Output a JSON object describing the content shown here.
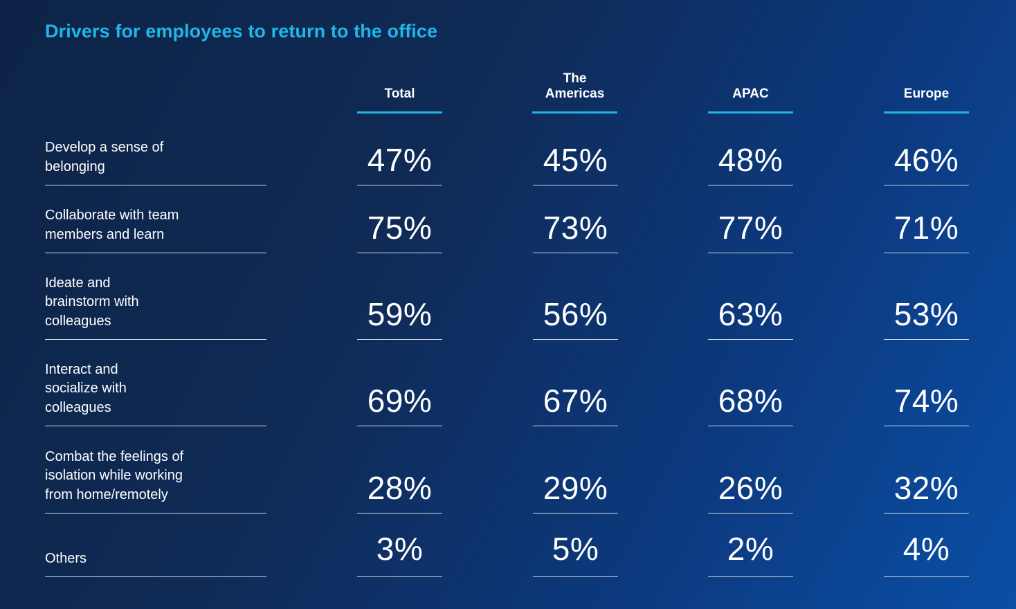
{
  "chart_data": {
    "type": "table",
    "title": "Drivers for employees to return to the office",
    "columns": [
      "Total",
      "The\nAmericas",
      "APAC",
      "Europe"
    ],
    "rows": [
      {
        "label": "Develop a sense of\nbelonging",
        "values": [
          "47%",
          "45%",
          "48%",
          "46%"
        ]
      },
      {
        "label": "Collaborate with team\nmembers and learn",
        "values": [
          "75%",
          "73%",
          "77%",
          "71%"
        ]
      },
      {
        "label": "Ideate and\nbrainstorm with\ncolleagues",
        "values": [
          "59%",
          "56%",
          "63%",
          "53%"
        ]
      },
      {
        "label": "Interact and\nsocialize with\ncolleagues",
        "values": [
          "69%",
          "67%",
          "68%",
          "74%"
        ]
      },
      {
        "label": "Combat the feelings of\nisolation while working\nfrom home/remotely",
        "values": [
          "28%",
          "29%",
          "26%",
          "32%"
        ]
      },
      {
        "label": "Others",
        "values": [
          "3%",
          "5%",
          "2%",
          "4%"
        ]
      }
    ]
  },
  "colors": {
    "title": "#1fb6e8",
    "header_rule": "#1fb6e8",
    "text": "#ffffff",
    "rule": "#d5dbe6"
  }
}
